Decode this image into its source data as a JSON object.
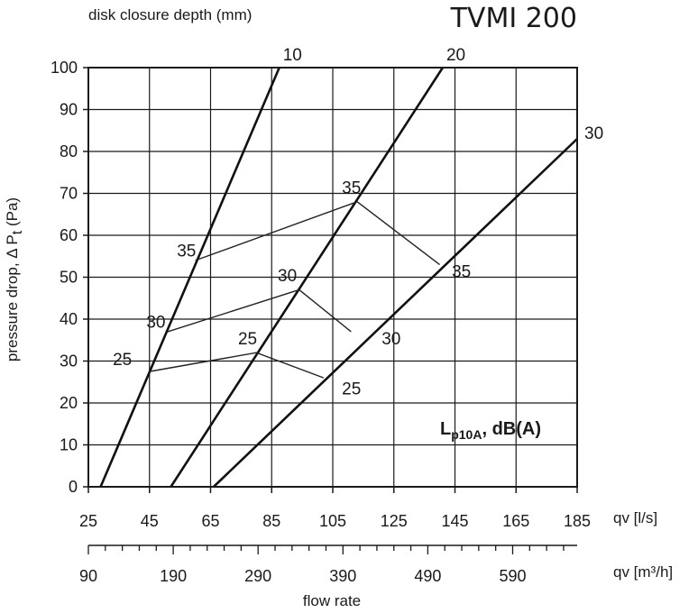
{
  "chart_data": {
    "type": "line",
    "model_label": "TVMI 200",
    "top_axis_label": "disk closure depth (mm)",
    "ylabel": "pressure drop,  Δ P",
    "ylabel_subscript": "t",
    "ylabel_unit": " (Pa)",
    "xlabel": "flow rate",
    "x_unit_ls": "qv [l/s]",
    "x_unit_m3h": "qv [m³/h]",
    "xlim": [
      25,
      185
    ],
    "ylim": [
      0,
      100
    ],
    "y_ticks": [
      0,
      10,
      20,
      30,
      40,
      50,
      60,
      70,
      80,
      90,
      100
    ],
    "x_ticks_ls": [
      25,
      45,
      65,
      85,
      105,
      125,
      145,
      165,
      185
    ],
    "x_ticks_m3h": [
      90,
      190,
      290,
      390,
      490,
      590
    ],
    "grid": true,
    "sound_label_main": "L",
    "sound_label_sub": "p10A",
    "sound_label_rest": ", dB(A)",
    "series": [
      {
        "name": "10",
        "points": [
          [
            29,
            0
          ],
          [
            87.5,
            100
          ]
        ]
      },
      {
        "name": "20",
        "points": [
          [
            52,
            0
          ],
          [
            141,
            100
          ]
        ]
      },
      {
        "name": "30",
        "points": [
          [
            66,
            0
          ],
          [
            185,
            83
          ]
        ]
      }
    ],
    "sound_lines": [
      {
        "name": "25",
        "points": [
          [
            45,
            27.5
          ],
          [
            80,
            32
          ],
          [
            102,
            26
          ]
        ],
        "label_left": [
          33,
          29
        ],
        "label_top": [
          74,
          34
        ],
        "label_right": [
          108,
          22
        ]
      },
      {
        "name": "30",
        "points": [
          [
            51,
            37
          ],
          [
            94,
            47
          ],
          [
            111,
            37
          ]
        ],
        "label_left": [
          44,
          38
        ],
        "label_top": [
          87,
          49
        ],
        "label_right": [
          121,
          34
        ]
      },
      {
        "name": "35",
        "points": [
          [
            60,
            54
          ],
          [
            113,
            68
          ],
          [
            140,
            53
          ]
        ],
        "label_left": [
          54,
          55
        ],
        "label_top": [
          108,
          70
        ],
        "label_right": [
          144,
          50
        ]
      }
    ]
  }
}
